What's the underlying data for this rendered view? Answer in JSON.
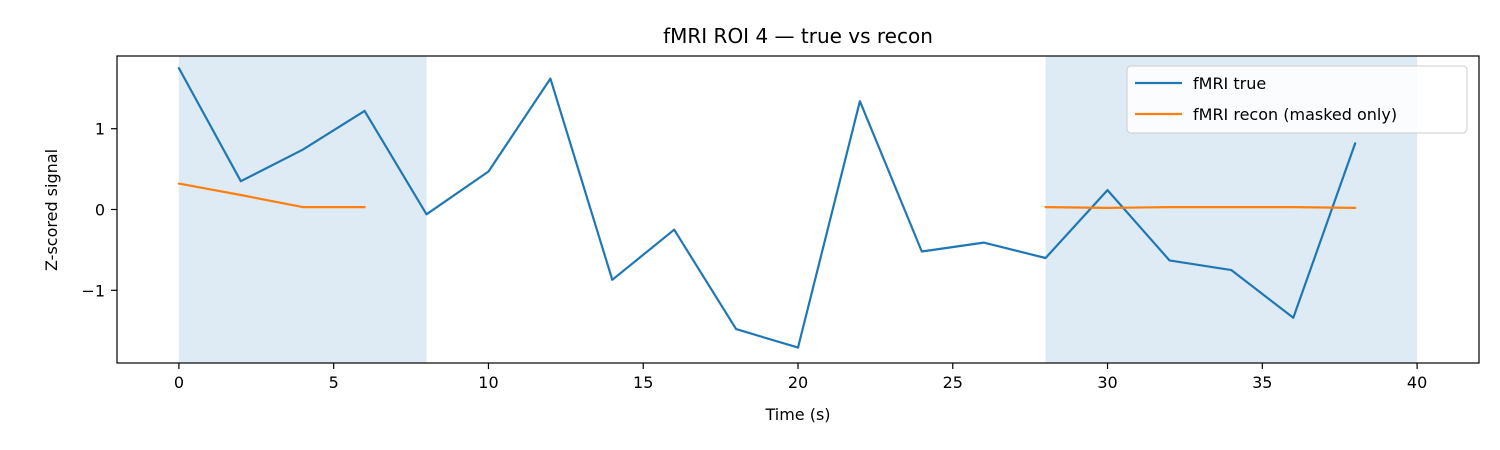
{
  "chart_data": {
    "type": "line",
    "title": "fMRI ROI 4 — true vs recon",
    "xlabel": "Time (s)",
    "ylabel": "Z-scored signal",
    "xlim": [
      -2,
      42
    ],
    "ylim": [
      -1.9,
      1.9
    ],
    "xticks": [
      0,
      5,
      10,
      15,
      20,
      25,
      30,
      35,
      40
    ],
    "yticks": [
      -1,
      0,
      1
    ],
    "ytick_labels": [
      "−1",
      "0",
      "1"
    ],
    "grid": false,
    "legend_position": "top-right",
    "masked_regions": [
      [
        0,
        8
      ],
      [
        28,
        40
      ]
    ],
    "series": [
      {
        "name": "fMRI true",
        "color": "#1f77b4",
        "x": [
          0,
          2,
          4,
          6,
          8,
          10,
          12,
          14,
          16,
          18,
          20,
          22,
          24,
          26,
          28,
          30,
          32,
          34,
          36,
          38
        ],
        "y": [
          1.75,
          0.35,
          0.74,
          1.22,
          -0.06,
          0.47,
          1.62,
          -0.87,
          -0.25,
          -1.48,
          -1.71,
          1.34,
          -0.52,
          -0.41,
          -0.6,
          0.24,
          -0.63,
          -0.75,
          -1.34,
          0.82
        ]
      },
      {
        "name": "fMRI recon (masked only)",
        "color": "#ff7f0e",
        "segments": [
          {
            "x": [
              0,
              2,
              4,
              6
            ],
            "y": [
              0.32,
              0.18,
              0.03,
              0.03
            ]
          },
          {
            "x": [
              28,
              30,
              32,
              34,
              36,
              38
            ],
            "y": [
              0.03,
              0.02,
              0.03,
              0.03,
              0.03,
              0.02
            ]
          }
        ]
      }
    ]
  }
}
